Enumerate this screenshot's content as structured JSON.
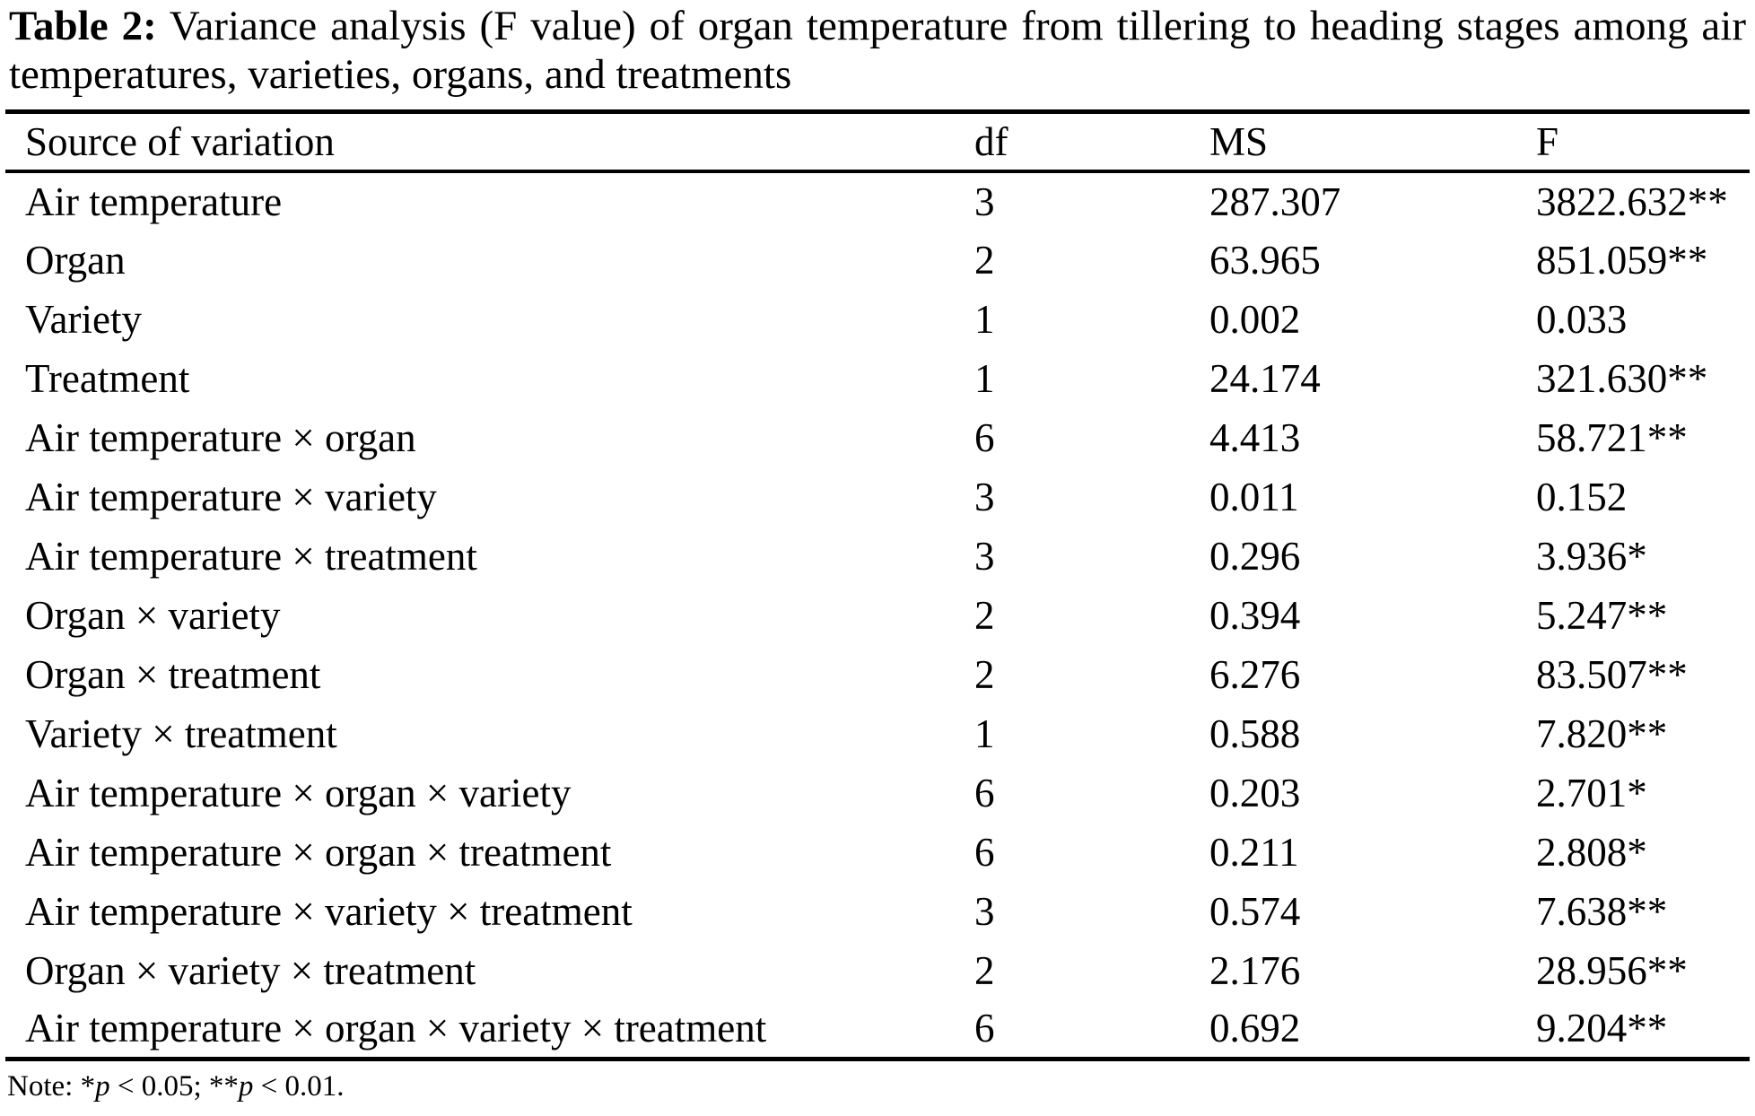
{
  "caption": {
    "label": "Table 2:",
    "text": "Variance analysis (F value) of organ temperature from tillering to heading stages among air temperatures, varieties, organs, and treatments"
  },
  "table": {
    "columns": [
      "Source of variation",
      "df",
      "MS",
      "F"
    ],
    "rows": [
      {
        "source": "Air temperature",
        "df": "3",
        "ms": "287.307",
        "f": "3822.632**"
      },
      {
        "source": "Organ",
        "df": "2",
        "ms": "63.965",
        "f": "851.059**"
      },
      {
        "source": "Variety",
        "df": "1",
        "ms": "0.002",
        "f": "0.033"
      },
      {
        "source": "Treatment",
        "df": "1",
        "ms": "24.174",
        "f": "321.630**"
      },
      {
        "source": "Air temperature × organ",
        "df": "6",
        "ms": "4.413",
        "f": "58.721**"
      },
      {
        "source": "Air temperature × variety",
        "df": "3",
        "ms": "0.011",
        "f": "0.152"
      },
      {
        "source": "Air temperature × treatment",
        "df": "3",
        "ms": "0.296",
        "f": "3.936*"
      },
      {
        "source": "Organ × variety",
        "df": "2",
        "ms": "0.394",
        "f": "5.247**"
      },
      {
        "source": "Organ × treatment",
        "df": "2",
        "ms": "6.276",
        "f": "83.507**"
      },
      {
        "source": "Variety × treatment",
        "df": "1",
        "ms": "0.588",
        "f": "7.820**"
      },
      {
        "source": "Air temperature × organ × variety",
        "df": "6",
        "ms": "0.203",
        "f": "2.701*"
      },
      {
        "source": "Air temperature × organ × treatment",
        "df": "6",
        "ms": "0.211",
        "f": "2.808*"
      },
      {
        "source": "Air temperature × variety × treatment",
        "df": "3",
        "ms": "0.574",
        "f": "7.638**"
      },
      {
        "source": "Organ × variety × treatment",
        "df": "2",
        "ms": "2.176",
        "f": "28.956**"
      },
      {
        "source": "Air temperature × organ × variety × treatment",
        "df": "6",
        "ms": "0.692",
        "f": "9.204**"
      }
    ]
  },
  "note": {
    "prefix": "Note: *",
    "p1": "p",
    "mid": " < 0.05; **",
    "p2": "p",
    "end": " < 0.01."
  },
  "colors": {
    "text": "#000000",
    "background": "#ffffff",
    "rule": "#000000"
  }
}
